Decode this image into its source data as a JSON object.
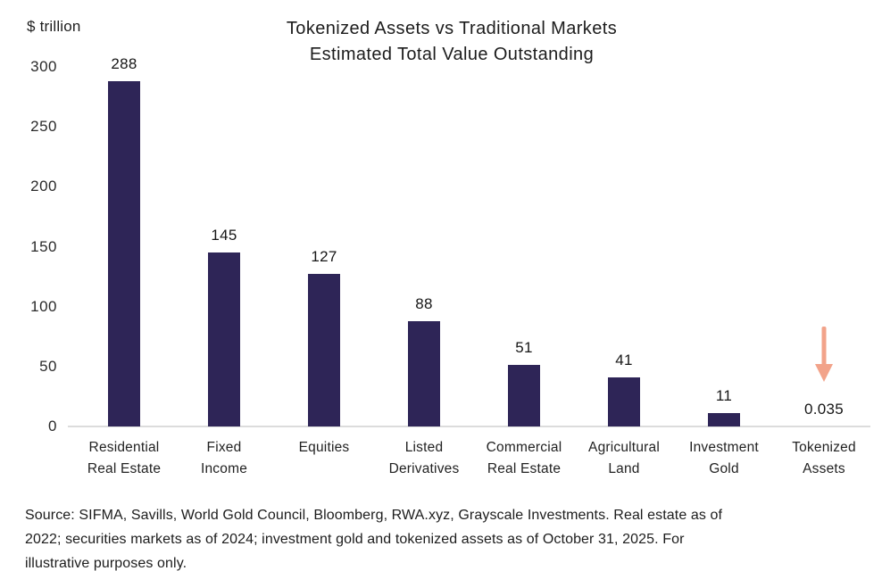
{
  "header": {
    "unit_label": "$ trillion"
  },
  "chart_data": {
    "type": "bar",
    "title": "Tokenized Assets vs Traditional Markets",
    "subtitle": "Estimated Total Value Outstanding",
    "ylabel": "$ trillion",
    "categories": [
      "Residential Real Estate",
      "Fixed Income",
      "Equities",
      "Listed Derivatives",
      "Commercial Real Estate",
      "Agricultural Land",
      "Investment Gold",
      "Tokenized Assets"
    ],
    "category_lines": [
      [
        "Residential",
        "Real Estate"
      ],
      [
        "Fixed",
        "Income"
      ],
      [
        "Equities"
      ],
      [
        "Listed",
        "Derivatives"
      ],
      [
        "Commercial",
        "Real Estate"
      ],
      [
        "Agricultural",
        "Land"
      ],
      [
        "Investment",
        "Gold"
      ],
      [
        "Tokenized",
        "Assets"
      ]
    ],
    "values": [
      288,
      145,
      127,
      88,
      51,
      41,
      11,
      0.035
    ],
    "value_labels": [
      "288",
      "145",
      "127",
      "88",
      "51",
      "41",
      "11",
      "0.035"
    ],
    "y_ticks": [
      0,
      50,
      100,
      150,
      200,
      250,
      300
    ],
    "ylim": [
      0,
      300
    ],
    "grid": false,
    "legend": false,
    "bar_color": "#2e2557",
    "arrow_color": "#f2a38a",
    "axis_line_color": "#dcdcdc",
    "annotations": [
      {
        "type": "down-arrow",
        "category_index": 7
      }
    ]
  },
  "footer": {
    "source_lines": [
      "Source: SIFMA, Savills, World Gold Council, Bloomberg, RWA.xyz, Grayscale Investments. Real estate as of",
      "2022; securities markets as of 2024; investment gold and tokenized assets as of October 31, 2025. For",
      "illustrative purposes only."
    ]
  }
}
